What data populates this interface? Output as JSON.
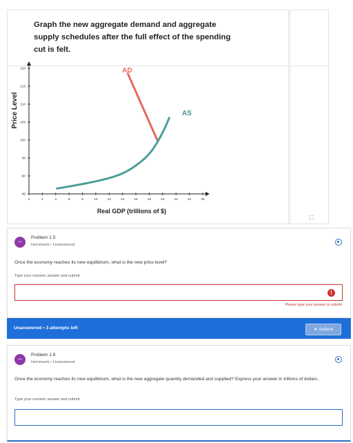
{
  "graph": {
    "prompt": "Graph the new aggregate demand and aggregate supply schedules after the full effect of the spending cut is felt.",
    "y_axis_title": "Price Level",
    "x_axis_title": "Real GDP (trillions of $)",
    "ad_label": "AD",
    "as_label": "AS"
  },
  "chart_data": {
    "type": "line",
    "xlabel": "Real GDP (trillions of $)",
    "ylabel": "Price Level",
    "xlim": [
      0,
      26
    ],
    "ylim": [
      85,
      120
    ],
    "x_ticks": [
      "0",
      "2",
      "4",
      "6",
      "8",
      "10",
      "12",
      "14",
      "16",
      "18",
      "20",
      "22",
      "24",
      "26"
    ],
    "y_ticks": [
      "85",
      "90",
      "95",
      "100",
      "105",
      "110",
      "115",
      "120"
    ],
    "series": [
      {
        "name": "AD",
        "color": "#e8675f",
        "points": [
          [
            14.8,
            118.5
          ],
          [
            19.2,
            100
          ]
        ]
      },
      {
        "name": "AS",
        "color": "#4a9e99",
        "points": [
          [
            4.2,
            86.5
          ],
          [
            8,
            87.7
          ],
          [
            12,
            89.3
          ],
          [
            14.5,
            91
          ],
          [
            16.5,
            93.5
          ],
          [
            18,
            96
          ],
          [
            19.3,
            99.5
          ],
          [
            20.3,
            103.2
          ],
          [
            21,
            106.2
          ]
        ]
      }
    ]
  },
  "problem15": {
    "avatar": "...",
    "title": "Problem 1.5",
    "meta": "Homework  •  Unanswered",
    "question": "Once the economy reaches its new equilibrium, what is the new price level?",
    "hint": "Type your numeric answer and submit",
    "error_icon": "!",
    "error": "Please type your answer to submit",
    "status": "Unanswered  •  3 attempts left",
    "submit": "Submit"
  },
  "problem16": {
    "avatar": "...",
    "title": "Problem 1.6",
    "meta": "Homework  •  Unanswered",
    "question": "Once the economy reaches its new equilibrium, what is the new aggregate quantity demanded and supplied? Express your answer in trillions of dollars.",
    "hint": "Type your numeric answer and submit"
  }
}
